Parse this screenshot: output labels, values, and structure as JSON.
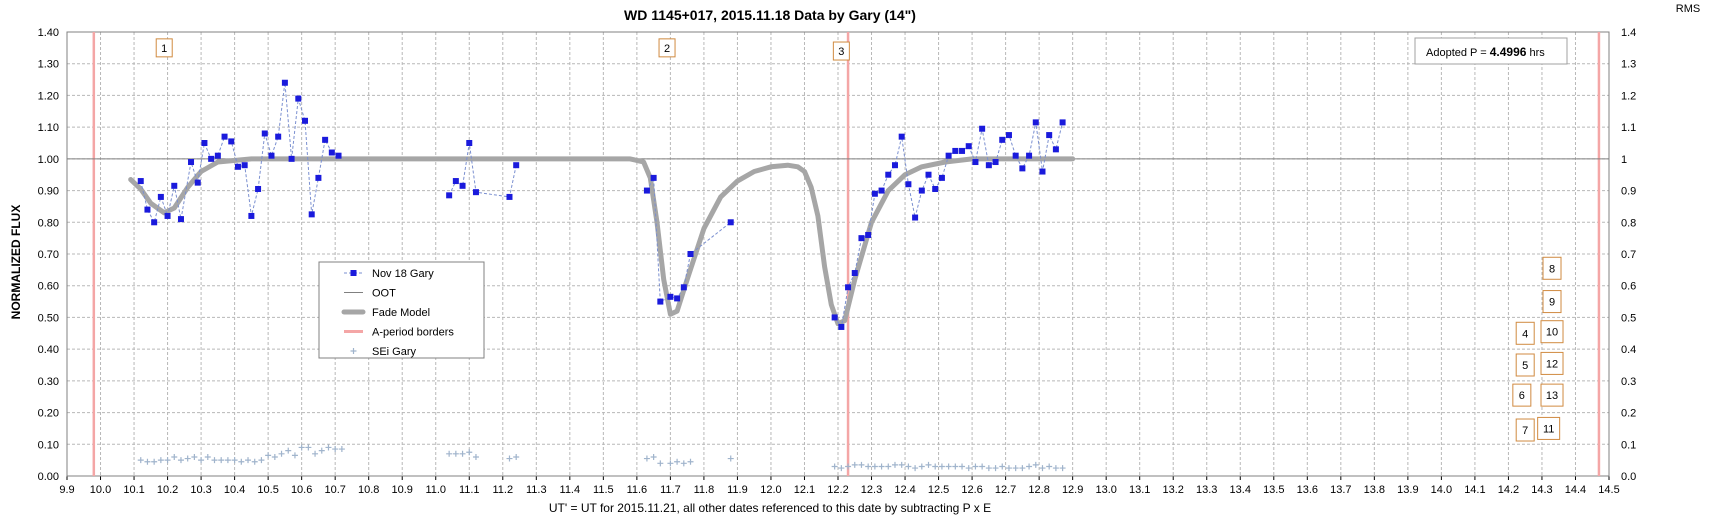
{
  "chart_data": {
    "type": "scatter",
    "title": "WD 1145+017, 2015.11.18 Data by Gary (14\")",
    "xlabel": "UT' = UT for 2015.11.21, all other dates referenced to this date by subtracting P x E",
    "ylabel": "NORMALIZED FLUX",
    "y2label": "RMS",
    "xlim": [
      9.9,
      14.5
    ],
    "ylim": [
      0.0,
      1.4
    ],
    "x_ticks": [
      "9.9",
      "10.0",
      "10.1",
      "10.2",
      "10.3",
      "10.4",
      "10.5",
      "10.6",
      "10.7",
      "10.8",
      "10.9",
      "11.0",
      "11.1",
      "11.2",
      "11.3",
      "11.4",
      "11.5",
      "11.6",
      "11.7",
      "11.8",
      "11.9",
      "12.0",
      "12.1",
      "12.2",
      "12.3",
      "12.4",
      "12.5",
      "12.6",
      "12.7",
      "12.8",
      "12.9",
      "13.0",
      "13.1",
      "13.2",
      "13.3",
      "13.4",
      "13.5",
      "13.6",
      "13.7",
      "13.8",
      "13.9",
      "14.0",
      "14.1",
      "14.2",
      "14.3",
      "14.4",
      "14.5"
    ],
    "y_ticks": [
      "0.00",
      "0.10",
      "0.20",
      "0.30",
      "0.40",
      "0.50",
      "0.60",
      "0.70",
      "0.80",
      "0.90",
      "1.00",
      "1.10",
      "1.20",
      "1.30",
      "1.40"
    ],
    "y2_ticks": [
      "0.0",
      "0.1",
      "0.2",
      "0.3",
      "0.4",
      "0.5",
      "0.6",
      "0.7",
      "0.8",
      "0.9",
      "1",
      "1.1",
      "1.2",
      "1.3",
      "1.4"
    ],
    "grid": true,
    "legend_position": "center-left",
    "annotation": {
      "prefix": "Adopted P = ",
      "value": "4.4996",
      "suffix": " hrs"
    },
    "legend": [
      {
        "name": "Nov 18 Gary",
        "style": "marker-dashed",
        "color": "#1a1adc"
      },
      {
        "name": "OOT",
        "style": "thin-line",
        "color": "#808080"
      },
      {
        "name": "Fade Model",
        "style": "thick-line",
        "color": "#a6a6a6"
      },
      {
        "name": "A-period borders",
        "style": "pink-line",
        "color": "#f4a6a6"
      },
      {
        "name": "SEi Gary",
        "style": "plus",
        "color": "#a0b4cc"
      }
    ],
    "oot_level": 1.0,
    "a_period_borders": [
      9.98,
      12.23,
      14.47
    ],
    "dip_labels": [
      {
        "label": "1",
        "x": 10.19,
        "y": 1.35
      },
      {
        "label": "2",
        "x": 11.69,
        "y": 1.35
      },
      {
        "label": "3",
        "x": 12.21,
        "y": 1.34
      }
    ],
    "side_boxes": [
      {
        "label": "8",
        "x": 14.33,
        "y": 0.655
      },
      {
        "label": "9",
        "x": 14.33,
        "y": 0.55
      },
      {
        "label": "4",
        "x": 14.25,
        "y": 0.45
      },
      {
        "label": "10",
        "x": 14.33,
        "y": 0.455
      },
      {
        "label": "5",
        "x": 14.25,
        "y": 0.35
      },
      {
        "label": "12",
        "x": 14.33,
        "y": 0.355
      },
      {
        "label": "6",
        "x": 14.24,
        "y": 0.255
      },
      {
        "label": "13",
        "x": 14.33,
        "y": 0.255
      },
      {
        "label": "7",
        "x": 14.25,
        "y": 0.145
      },
      {
        "label": "11",
        "x": 14.32,
        "y": 0.15
      }
    ],
    "series": [
      {
        "name": "Nov 18 Gary",
        "segments": [
          [
            [
              10.12,
              0.93
            ],
            [
              10.14,
              0.84
            ],
            [
              10.16,
              0.8
            ],
            [
              10.18,
              0.88
            ],
            [
              10.2,
              0.82
            ],
            [
              10.22,
              0.915
            ],
            [
              10.24,
              0.81
            ],
            [
              10.27,
              0.99
            ],
            [
              10.29,
              0.925
            ],
            [
              10.31,
              1.05
            ],
            [
              10.33,
              1.0
            ],
            [
              10.35,
              1.01
            ],
            [
              10.37,
              1.07
            ],
            [
              10.39,
              1.055
            ],
            [
              10.41,
              0.975
            ],
            [
              10.43,
              0.98
            ],
            [
              10.45,
              0.82
            ],
            [
              10.47,
              0.905
            ],
            [
              10.49,
              1.08
            ],
            [
              10.51,
              1.01
            ],
            [
              10.53,
              1.07
            ],
            [
              10.55,
              1.24
            ],
            [
              10.57,
              1.0
            ],
            [
              10.59,
              1.19
            ],
            [
              10.61,
              1.12
            ],
            [
              10.63,
              0.825
            ],
            [
              10.65,
              0.94
            ],
            [
              10.67,
              1.06
            ],
            [
              10.69,
              1.02
            ],
            [
              10.71,
              1.01
            ]
          ],
          [
            [
              11.04,
              0.885
            ],
            [
              11.06,
              0.93
            ],
            [
              11.08,
              0.915
            ],
            [
              11.1,
              1.05
            ],
            [
              11.12,
              0.895
            ],
            [
              11.22,
              0.88
            ],
            [
              11.24,
              0.98
            ]
          ],
          [
            [
              11.63,
              0.9
            ],
            [
              11.65,
              0.94
            ],
            [
              11.67,
              0.55
            ],
            [
              11.7,
              0.565
            ],
            [
              11.72,
              0.56
            ],
            [
              11.74,
              0.595
            ],
            [
              11.76,
              0.7
            ],
            [
              11.88,
              0.8
            ]
          ],
          [
            [
              12.19,
              0.5
            ],
            [
              12.21,
              0.47
            ],
            [
              12.23,
              0.595
            ],
            [
              12.25,
              0.64
            ],
            [
              12.27,
              0.75
            ],
            [
              12.29,
              0.76
            ],
            [
              12.31,
              0.89
            ],
            [
              12.33,
              0.9
            ],
            [
              12.35,
              0.95
            ],
            [
              12.37,
              0.98
            ],
            [
              12.39,
              1.07
            ],
            [
              12.41,
              0.92
            ],
            [
              12.43,
              0.815
            ],
            [
              12.45,
              0.9
            ],
            [
              12.47,
              0.95
            ],
            [
              12.49,
              0.905
            ],
            [
              12.51,
              0.94
            ],
            [
              12.53,
              1.01
            ],
            [
              12.55,
              1.025
            ],
            [
              12.57,
              1.025
            ],
            [
              12.59,
              1.04
            ],
            [
              12.61,
              0.99
            ],
            [
              12.63,
              1.095
            ],
            [
              12.65,
              0.98
            ],
            [
              12.67,
              0.99
            ],
            [
              12.69,
              1.06
            ],
            [
              12.71,
              1.075
            ],
            [
              12.73,
              1.01
            ],
            [
              12.75,
              0.97
            ],
            [
              12.77,
              1.01
            ],
            [
              12.79,
              1.115
            ],
            [
              12.81,
              0.96
            ],
            [
              12.83,
              1.075
            ],
            [
              12.85,
              1.03
            ],
            [
              12.87,
              1.115
            ]
          ]
        ]
      },
      {
        "name": "Fade Model",
        "values": [
          [
            10.09,
            0.935
          ],
          [
            10.12,
            0.905
          ],
          [
            10.15,
            0.86
          ],
          [
            10.19,
            0.83
          ],
          [
            10.22,
            0.845
          ],
          [
            10.26,
            0.91
          ],
          [
            10.3,
            0.96
          ],
          [
            10.35,
            0.99
          ],
          [
            10.45,
            1.0
          ],
          [
            11.45,
            1.0
          ],
          [
            11.58,
            1.0
          ],
          [
            11.62,
            0.99
          ],
          [
            11.64,
            0.94
          ],
          [
            11.66,
            0.8
          ],
          [
            11.68,
            0.62
          ],
          [
            11.7,
            0.51
          ],
          [
            11.72,
            0.52
          ],
          [
            11.75,
            0.62
          ],
          [
            11.8,
            0.78
          ],
          [
            11.85,
            0.88
          ],
          [
            11.9,
            0.93
          ],
          [
            11.95,
            0.96
          ],
          [
            12.0,
            0.975
          ],
          [
            12.05,
            0.98
          ],
          [
            12.08,
            0.975
          ],
          [
            12.1,
            0.96
          ],
          [
            12.12,
            0.91
          ],
          [
            12.14,
            0.82
          ],
          [
            12.16,
            0.66
          ],
          [
            12.18,
            0.54
          ],
          [
            12.2,
            0.48
          ],
          [
            12.22,
            0.49
          ],
          [
            12.25,
            0.62
          ],
          [
            12.3,
            0.8
          ],
          [
            12.35,
            0.9
          ],
          [
            12.4,
            0.95
          ],
          [
            12.45,
            0.975
          ],
          [
            12.52,
            0.99
          ],
          [
            12.6,
            1.0
          ],
          [
            12.9,
            1.0
          ]
        ]
      },
      {
        "name": "SEi Gary",
        "values": [
          [
            10.12,
            0.05
          ],
          [
            10.14,
            0.045
          ],
          [
            10.16,
            0.045
          ],
          [
            10.18,
            0.05
          ],
          [
            10.2,
            0.05
          ],
          [
            10.22,
            0.06
          ],
          [
            10.24,
            0.05
          ],
          [
            10.26,
            0.055
          ],
          [
            10.28,
            0.06
          ],
          [
            10.3,
            0.05
          ],
          [
            10.32,
            0.06
          ],
          [
            10.34,
            0.05
          ],
          [
            10.36,
            0.05
          ],
          [
            10.38,
            0.05
          ],
          [
            10.4,
            0.05
          ],
          [
            10.42,
            0.045
          ],
          [
            10.44,
            0.05
          ],
          [
            10.46,
            0.045
          ],
          [
            10.48,
            0.05
          ],
          [
            10.5,
            0.065
          ],
          [
            10.52,
            0.06
          ],
          [
            10.54,
            0.07
          ],
          [
            10.56,
            0.08
          ],
          [
            10.58,
            0.065
          ],
          [
            10.6,
            0.09
          ],
          [
            10.62,
            0.09
          ],
          [
            10.64,
            0.07
          ],
          [
            10.66,
            0.08
          ],
          [
            10.68,
            0.09
          ],
          [
            10.7,
            0.085
          ],
          [
            10.72,
            0.085
          ],
          [
            11.04,
            0.07
          ],
          [
            11.06,
            0.07
          ],
          [
            11.08,
            0.07
          ],
          [
            11.1,
            0.075
          ],
          [
            11.12,
            0.06
          ],
          [
            11.22,
            0.055
          ],
          [
            11.24,
            0.06
          ],
          [
            11.63,
            0.055
          ],
          [
            11.65,
            0.06
          ],
          [
            11.67,
            0.04
          ],
          [
            11.7,
            0.04
          ],
          [
            11.72,
            0.045
          ],
          [
            11.74,
            0.04
          ],
          [
            11.76,
            0.045
          ],
          [
            11.88,
            0.055
          ],
          [
            12.19,
            0.03
          ],
          [
            12.21,
            0.025
          ],
          [
            12.23,
            0.03
          ],
          [
            12.25,
            0.035
          ],
          [
            12.27,
            0.035
          ],
          [
            12.29,
            0.03
          ],
          [
            12.31,
            0.03
          ],
          [
            12.33,
            0.03
          ],
          [
            12.35,
            0.03
          ],
          [
            12.37,
            0.035
          ],
          [
            12.39,
            0.035
          ],
          [
            12.41,
            0.03
          ],
          [
            12.43,
            0.025
          ],
          [
            12.45,
            0.03
          ],
          [
            12.47,
            0.035
          ],
          [
            12.49,
            0.03
          ],
          [
            12.51,
            0.03
          ],
          [
            12.53,
            0.03
          ],
          [
            12.55,
            0.03
          ],
          [
            12.57,
            0.03
          ],
          [
            12.59,
            0.025
          ],
          [
            12.61,
            0.03
          ],
          [
            12.63,
            0.03
          ],
          [
            12.65,
            0.025
          ],
          [
            12.67,
            0.025
          ],
          [
            12.69,
            0.03
          ],
          [
            12.71,
            0.025
          ],
          [
            12.73,
            0.025
          ],
          [
            12.75,
            0.025
          ],
          [
            12.77,
            0.03
          ],
          [
            12.79,
            0.035
          ],
          [
            12.81,
            0.025
          ],
          [
            12.83,
            0.03
          ],
          [
            12.85,
            0.025
          ],
          [
            12.87,
            0.025
          ]
        ]
      }
    ]
  }
}
